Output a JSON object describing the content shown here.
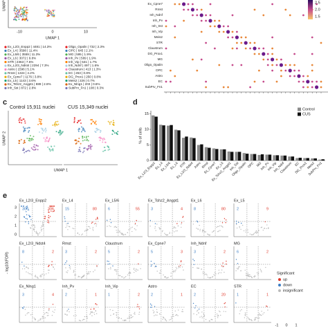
{
  "panel_a": {
    "umap_x": "UMAP 1",
    "umap_y": "UMAP 2",
    "ticks": [
      "-10",
      "0",
      "10"
    ],
    "legend": [
      "Ex_L2/3_Enpp2 | 4481 | 14.3%",
      "Ex_L4 | 3598 | 11.4%",
      "Ex_L5/6 | 3559 | 11.3%",
      "Ex_L6 | 3072 | 9.8%",
      "STR | 2363 | 7.5%",
      "Ex_L2/3_Ndst4 | 2294 | 7.3%",
      "Astro | 1596 | 5.1%",
      "Rmst | 1324 | 4.2%",
      "Ex_Cpne7 | 1176 | 3.8%",
      "Ex_L5 | 1143 | 3.6%",
      "Ex_Tshz2_Angpt1 | 889 | 2.8%",
      "Inh_Sst | 872 | 2.8%",
      "Oligo_Opalin | 732 | 2.3%",
      "OPC | 645 | 2.1%",
      "MG | 595 | 1.9%",
      "Inh_Pv | 589 | 1.9%",
      "Inh_Vip | 531 | 1.7%",
      "Inh_Ndnf | 497 | 1.6%",
      "Claustrum | 413 | 1.3%",
      "EC | 263 | 0.8%",
      "DG_Prox1 | 250 | 0.8%",
      "Meis2 | 226 | 0.7%",
      "Ex_Nlng1 | 203 | 0.6%",
      "SubPrv_Fn1 | 108 | 0.3%"
    ]
  },
  "panel_b": {
    "rows": [
      "Ex_Cpne7",
      "Rmst",
      "Inh_Ndnf",
      "Inh_Pv",
      "Inh_Sst",
      "Inh_Vip",
      "Meis2",
      "STR",
      "Claustrum",
      "DG_Prox1",
      "MG",
      "Oligo_Opalin",
      "OPC",
      "Astro",
      "EC",
      "SubPrv_Fn1"
    ],
    "colorbar": [
      "2.5",
      "2.0",
      "1.5"
    ]
  },
  "panel_c": {
    "label": "c",
    "control": "Control 15,911 nuclei",
    "cus": "CUS 15,349 nuclei",
    "umap_x": "UMAP 1",
    "umap_y": "UMAP 2"
  },
  "panel_d": {
    "label": "d"
  },
  "chart_data": {
    "type": "bar",
    "y_axis_label": "% of cells",
    "categories": [
      "Ex_L2/3_Enpp2",
      "Ex_L4",
      "Ex_L5/6",
      "Ex_L6",
      "STR",
      "Ex_L2/3_Ndst4",
      "Astro",
      "Rmst",
      "Ex_Cpne7",
      "Ex_L5",
      "Ex_Tshz2_Angpt1",
      "Inh_Sst",
      "Oligo_Opalin",
      "OPC",
      "MG",
      "Inh_Pv",
      "Inh_Vip",
      "Inh_Ndnf",
      "Claustrum",
      "EC",
      "DG_Prox1",
      "Meis2",
      "SubPrv_Fn1"
    ],
    "series": [
      {
        "name": "Control",
        "color": "#8c8c8c",
        "values": [
          14.5,
          11.5,
          11.2,
          9.9,
          7.3,
          7.4,
          5.0,
          4.3,
          3.9,
          3.6,
          2.9,
          2.8,
          2.4,
          2.1,
          1.8,
          1.9,
          1.7,
          1.6,
          1.3,
          0.8,
          0.8,
          0.7,
          0.3
        ]
      },
      {
        "name": "CUS",
        "color": "#111111",
        "values": [
          14.1,
          11.3,
          11.4,
          9.7,
          7.7,
          7.2,
          5.2,
          4.1,
          3.7,
          3.6,
          2.8,
          2.8,
          2.2,
          2.1,
          2.0,
          1.9,
          1.7,
          1.6,
          1.3,
          0.9,
          0.8,
          0.7,
          0.4
        ]
      }
    ],
    "ylim": [
      0,
      16
    ],
    "yticks": [
      0,
      5,
      10,
      15
    ],
    "legend": "top-right"
  },
  "panel_e": {
    "label": "e",
    "y_axis_label": "- log10(FDR)",
    "yticks": [
      "3",
      "2",
      "1",
      "0"
    ],
    "xticks": [
      "-1",
      "0",
      "1"
    ],
    "plots": [
      {
        "title": "Ex_L2/3_Enpp2",
        "down": 300,
        "up": 306
      },
      {
        "title": "Ex_L4",
        "down": 15,
        "up": 80
      },
      {
        "title": "Ex_L5/6",
        "down": 6,
        "up": 55
      },
      {
        "title": "Ex_Tshz2_Angpt1",
        "down": 3,
        "up": 4
      },
      {
        "title": "Ex_L6",
        "down": 8,
        "up": 80
      },
      {
        "title": "Ex_L5",
        "down": 2,
        "up": 9
      },
      {
        "title": "Ex_L2/3_Ndst4",
        "down": 8,
        "up": 2
      },
      {
        "title": "Rmst",
        "down": 3,
        "up": 2
      },
      {
        "title": "Claustrum",
        "down": 5,
        "up": 2
      },
      {
        "title": "Ex_Cpne7",
        "down": 5,
        "up": 3
      },
      {
        "title": "Inh_Ndnf",
        "down": 3,
        "up": 2
      },
      {
        "title": "MG",
        "down": 6,
        "up": 2
      },
      {
        "title": "Ex_Nlng1",
        "down": 3,
        "up": 4
      },
      {
        "title": "Inh_Pv",
        "down": 2,
        "up": 1
      },
      {
        "title": "Inh_Vip",
        "down": 1,
        "up": 2
      },
      {
        "title": "Astro",
        "down": 2,
        "up": 1
      },
      {
        "title": "EC",
        "down": 2,
        "up": 20
      },
      {
        "title": "STR",
        "down": 1,
        "up": 1
      }
    ],
    "legend": {
      "title": "Significant",
      "items": [
        "up",
        "down",
        "insignificant"
      ]
    }
  }
}
